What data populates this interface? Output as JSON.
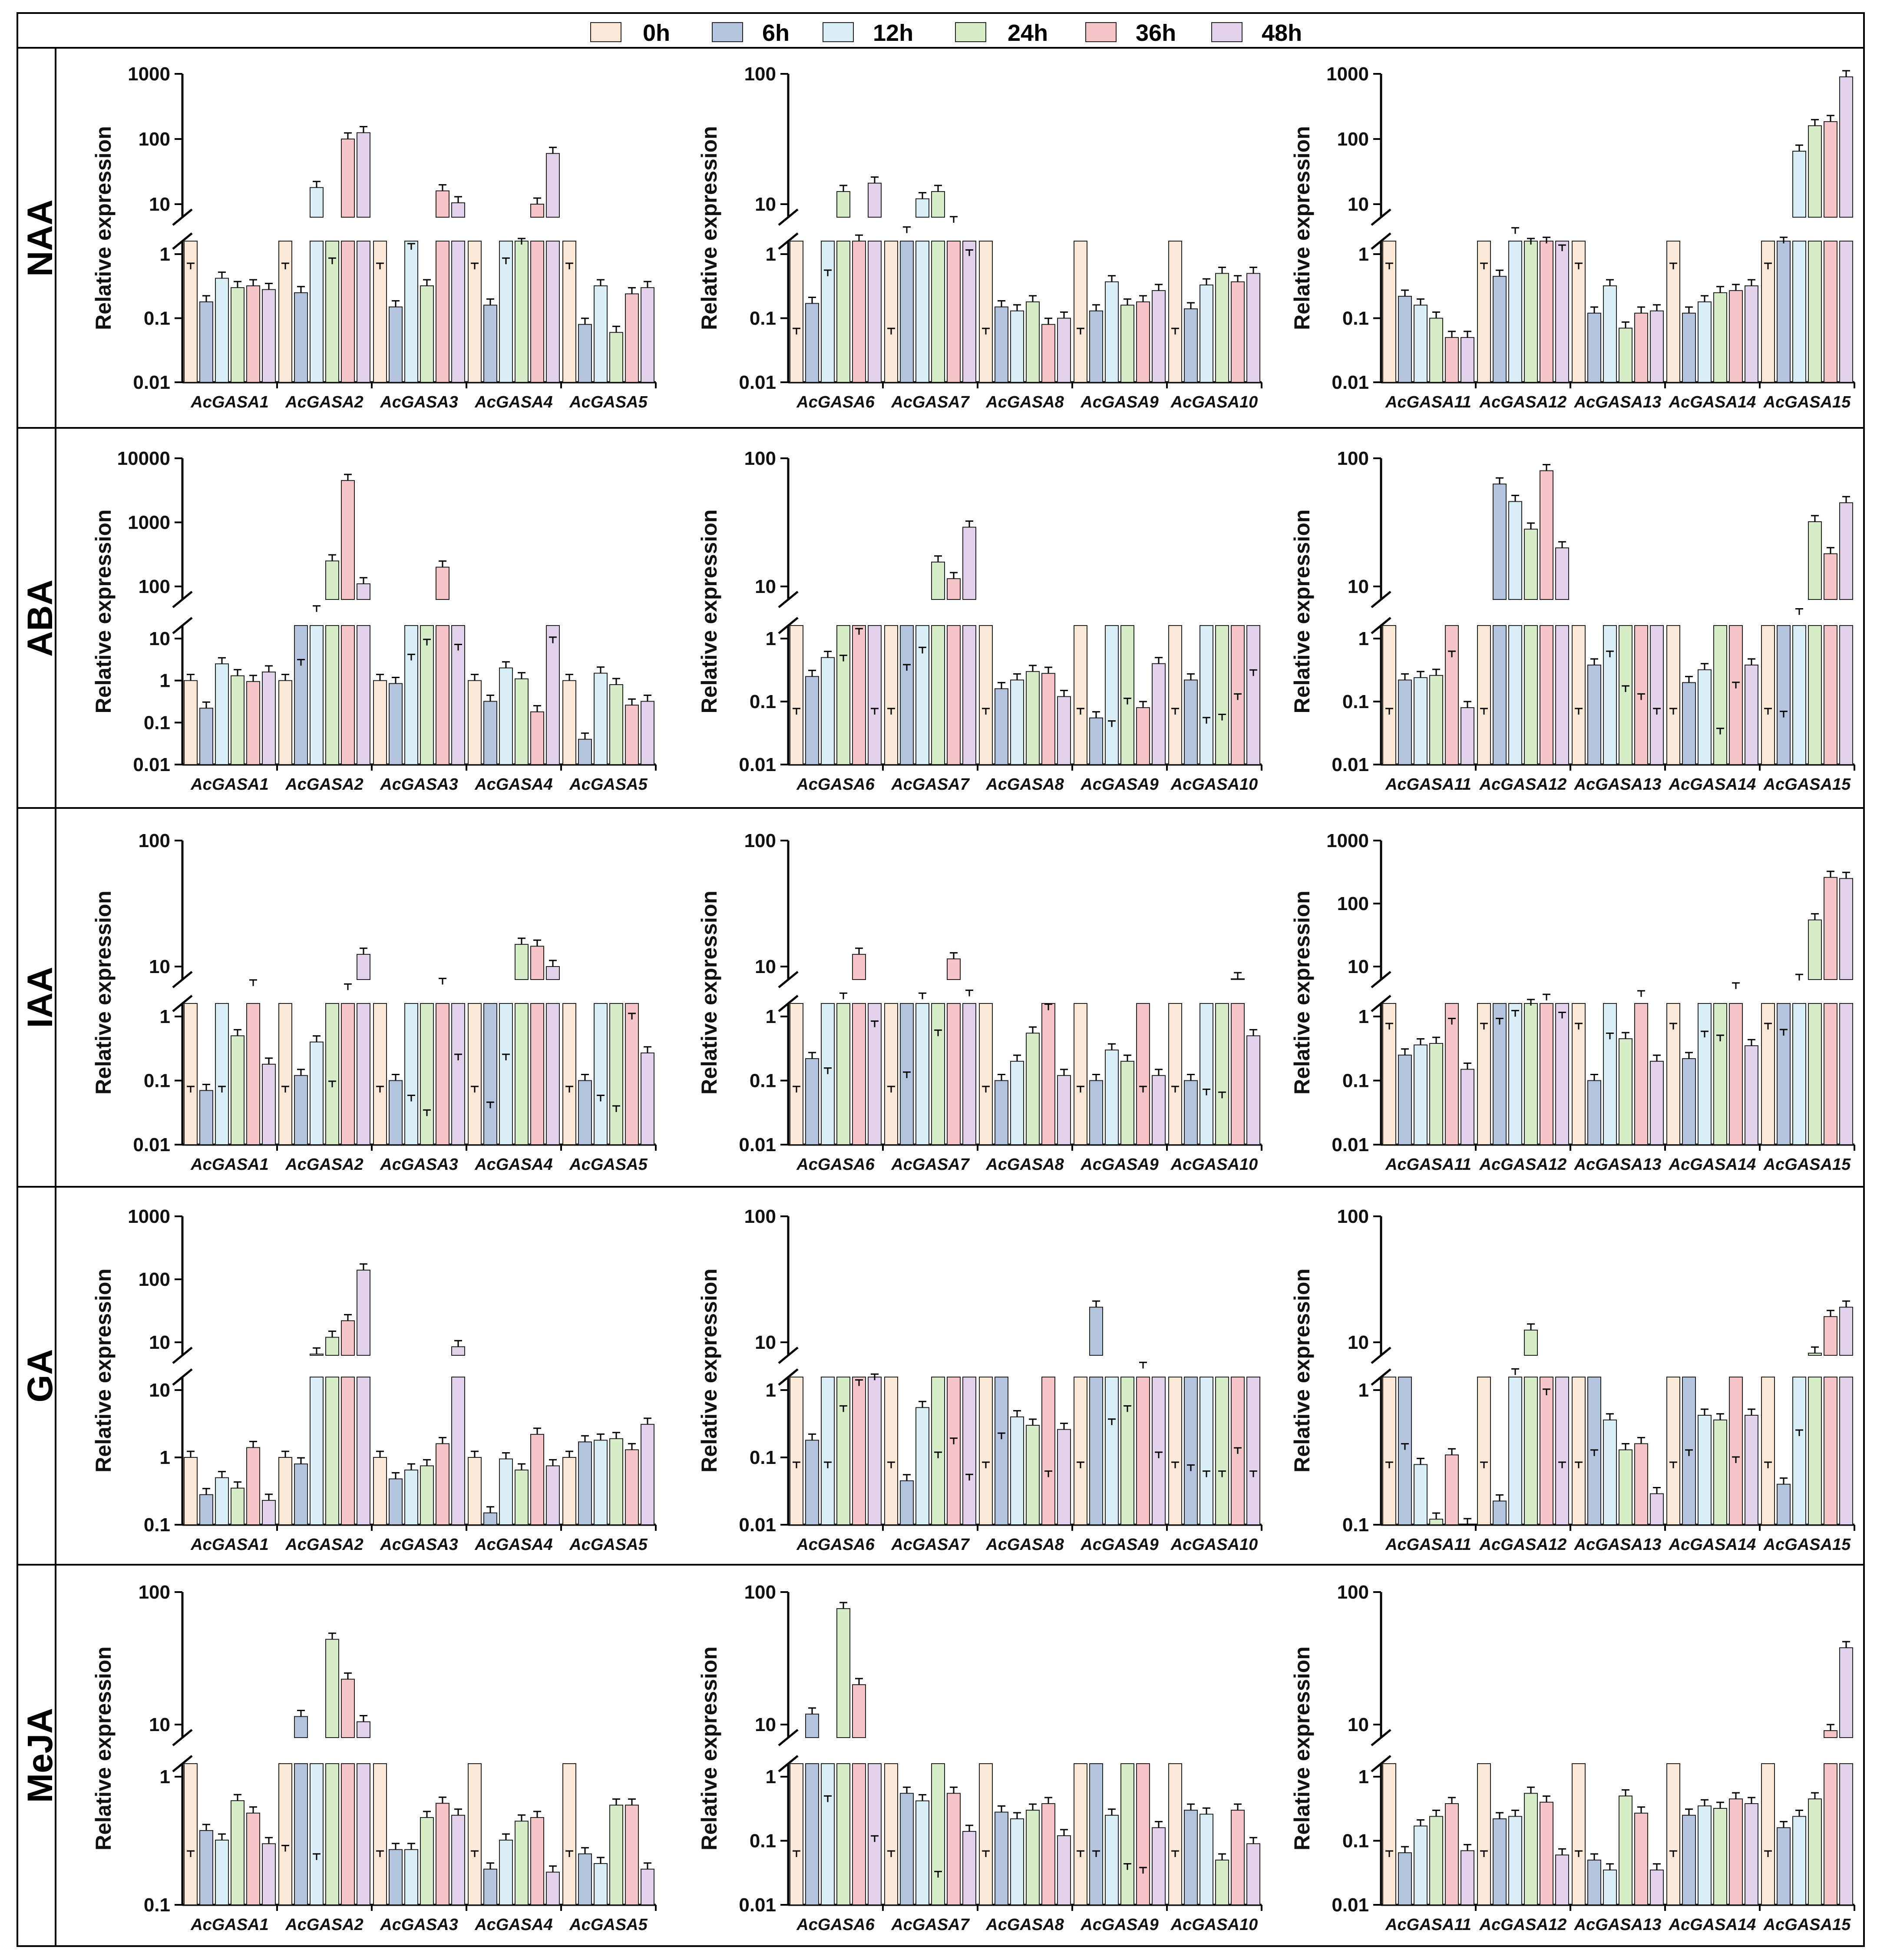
{
  "legend": {
    "labels": [
      "0h",
      "6h",
      "12h",
      "24h",
      "36h",
      "48h"
    ],
    "colors": [
      "#fbe8d6",
      "#b4c4de",
      "#d9eef6",
      "#d7ecc9",
      "#f7c5c7",
      "#e2d2ec"
    ]
  },
  "y_axis_label": "Relative expression",
  "chart_data": [
    {
      "type": "bar",
      "scale": "log-broken",
      "treatment": "NAA",
      "panel": 1,
      "title": "NAA",
      "ylabel": "Relative expression",
      "lower_ticks": [
        "0.01",
        "0.1",
        "1"
      ],
      "upper_ticks": [
        "10",
        "100",
        "1000"
      ],
      "categories": [
        "AcGASA1",
        "AcGASA2",
        "AcGASA3",
        "AcGASA4",
        "AcGASA5"
      ],
      "values": [
        [
          1.0,
          0.18,
          0.42,
          0.3,
          0.32,
          0.28
        ],
        [
          1.0,
          0.25,
          18,
          1.2,
          100,
          125
        ],
        [
          1.0,
          0.15,
          2.0,
          0.32,
          16,
          10.5
        ],
        [
          1.0,
          0.16,
          1.2,
          2.4,
          10,
          60
        ],
        [
          1.0,
          0.08,
          0.32,
          0.06,
          0.24,
          0.3
        ]
      ]
    },
    {
      "type": "bar",
      "scale": "log-broken",
      "treatment": "NAA",
      "panel": 2,
      "title": "",
      "ylabel": "Relative expression",
      "lower_ticks": [
        "0.01",
        "0.1",
        "1"
      ],
      "upper_ticks": [
        "10",
        "100"
      ],
      "categories": [
        "AcGASA6",
        "AcGASA7",
        "AcGASA8",
        "AcGASA9",
        "AcGASA10"
      ],
      "values": [
        [
          1.0,
          0.17,
          2.8,
          12.5,
          5.2,
          14.5
        ],
        [
          1.0,
          6.0,
          11,
          12.5,
          7.2,
          4.0
        ],
        [
          1.0,
          0.15,
          0.13,
          0.18,
          0.08,
          0.1
        ],
        [
          1.0,
          0.13,
          0.37,
          0.16,
          0.18,
          0.27
        ],
        [
          1.0,
          0.14,
          0.33,
          0.5,
          0.37,
          0.5
        ]
      ]
    },
    {
      "type": "bar",
      "scale": "log-broken",
      "treatment": "NAA",
      "panel": 3,
      "title": "",
      "ylabel": "Relative expression",
      "lower_ticks": [
        "0.01",
        "0.1",
        "1"
      ],
      "upper_ticks": [
        "10",
        "100",
        "1000"
      ],
      "categories": [
        "AcGASA11",
        "AcGASA12",
        "AcGASA13",
        "AcGASA14",
        "AcGASA15"
      ],
      "values": [
        [
          1.0,
          0.22,
          0.16,
          0.1,
          0.05,
          0.05
        ],
        [
          1.0,
          0.45,
          3.5,
          2.4,
          2.5,
          1.9
        ],
        [
          1.0,
          0.12,
          0.32,
          0.07,
          0.12,
          0.13
        ],
        [
          1.0,
          0.12,
          0.18,
          0.25,
          0.27,
          0.32
        ],
        [
          1.0,
          2.5,
          65,
          160,
          185,
          900
        ]
      ]
    },
    {
      "type": "bar",
      "scale": "log-broken",
      "treatment": "ABA",
      "panel": 1,
      "title": "ABA",
      "ylabel": "Relative expression",
      "lower_ticks": [
        "0.01",
        "0.1",
        "1",
        "10"
      ],
      "upper_ticks": [
        "100",
        "1000",
        "10000"
      ],
      "categories": [
        "AcGASA1",
        "AcGASA2",
        "AcGASA3",
        "AcGASA4",
        "AcGASA5"
      ],
      "values": [
        [
          1.0,
          0.22,
          2.5,
          1.3,
          0.95,
          1.6
        ],
        [
          1.0,
          5.8,
          40,
          250,
          4500,
          110
        ],
        [
          1.0,
          0.85,
          7,
          12,
          200,
          10
        ],
        [
          1.0,
          0.32,
          2.0,
          1.1,
          0.18,
          13
        ],
        [
          1.0,
          0.04,
          1.5,
          0.8,
          0.26,
          0.32
        ]
      ]
    },
    {
      "type": "bar",
      "scale": "log-broken",
      "treatment": "ABA",
      "panel": 2,
      "title": "",
      "ylabel": "Relative expression",
      "lower_ticks": [
        "0.01",
        "0.1",
        "1"
      ],
      "upper_ticks": [
        "10",
        "100"
      ],
      "categories": [
        "AcGASA6",
        "AcGASA7",
        "AcGASA8",
        "AcGASA9",
        "AcGASA10"
      ],
      "values": [
        [
          1.0,
          0.25,
          0.5,
          2.6,
          4.2,
          1.0
        ],
        [
          1.0,
          2.2,
          3.0,
          15.5,
          11.5,
          29
        ],
        [
          1.0,
          0.16,
          0.22,
          0.3,
          0.28,
          0.12
        ],
        [
          1.0,
          0.055,
          0.8,
          1.2,
          0.08,
          0.4
        ],
        [
          1.0,
          0.22,
          0.85,
          0.9,
          1.3,
          2.0
        ]
      ]
    },
    {
      "type": "bar",
      "scale": "log-broken",
      "treatment": "ABA",
      "panel": 3,
      "title": "",
      "ylabel": "Relative expression",
      "lower_ticks": [
        "0.01",
        "0.1",
        "1"
      ],
      "upper_ticks": [
        "10",
        "100"
      ],
      "categories": [
        "AcGASA11",
        "AcGASA12",
        "AcGASA13",
        "AcGASA14",
        "AcGASA15"
      ],
      "values": [
        [
          1.0,
          0.22,
          0.24,
          0.26,
          2.8,
          0.08
        ],
        [
          1.0,
          63,
          46,
          28,
          80,
          20
        ],
        [
          1.0,
          0.38,
          2.8,
          1.5,
          1.3,
          1.0
        ],
        [
          1.0,
          0.2,
          0.32,
          0.7,
          1.6,
          0.38
        ],
        [
          1.0,
          0.95,
          6.0,
          32,
          18,
          45
        ]
      ]
    },
    {
      "type": "bar",
      "scale": "log-broken",
      "treatment": "IAA",
      "panel": 1,
      "title": "IAA",
      "ylabel": "Relative expression",
      "lower_ticks": [
        "0.01",
        "0.1",
        "1"
      ],
      "upper_ticks": [
        "10",
        "100"
      ],
      "categories": [
        "AcGASA1",
        "AcGASA2",
        "AcGASA3",
        "AcGASA4",
        "AcGASA5"
      ],
      "values": [
        [
          1.0,
          0.07,
          1.0,
          0.5,
          7.0,
          0.18
        ],
        [
          1.0,
          0.12,
          0.4,
          1.1,
          6.5,
          12.5
        ],
        [
          1.0,
          0.1,
          0.85,
          0.65,
          7.2,
          1.8
        ],
        [
          1.0,
          0.75,
          1.8,
          15,
          14.5,
          10
        ],
        [
          1.0,
          0.1,
          0.85,
          0.7,
          3.8,
          0.27
        ]
      ]
    },
    {
      "type": "bar",
      "scale": "log-broken",
      "treatment": "IAA",
      "panel": 2,
      "title": "",
      "ylabel": "Relative expression",
      "lower_ticks": [
        "0.01",
        "0.1",
        "1"
      ],
      "upper_ticks": [
        "10",
        "100"
      ],
      "categories": [
        "AcGASA6",
        "AcGASA7",
        "AcGASA8",
        "AcGASA9",
        "AcGASA10"
      ],
      "values": [
        [
          1.0,
          0.22,
          1.4,
          5.5,
          12.5,
          3.3
        ],
        [
          1.0,
          1.3,
          5.5,
          2.8,
          11.5,
          5.8
        ],
        [
          1.0,
          0.1,
          0.2,
          0.55,
          4.5,
          0.12
        ],
        [
          1.0,
          0.1,
          0.3,
          0.2,
          1.0,
          0.12
        ],
        [
          1.0,
          0.1,
          0.95,
          0.9,
          8.0,
          0.5
        ]
      ]
    },
    {
      "type": "bar",
      "scale": "log-broken",
      "treatment": "IAA",
      "panel": 3,
      "title": "",
      "ylabel": "Relative expression",
      "lower_ticks": [
        "0.01",
        "0.1",
        "1"
      ],
      "upper_ticks": [
        "10",
        "100",
        "1000"
      ],
      "categories": [
        "AcGASA11",
        "AcGASA12",
        "AcGASA13",
        "AcGASA14",
        "AcGASA15"
      ],
      "values": [
        [
          1.0,
          0.25,
          0.36,
          0.38,
          1.2,
          0.15
        ],
        [
          1.0,
          1.2,
          1.6,
          2.4,
          2.9,
          1.5
        ],
        [
          1.0,
          0.1,
          0.7,
          0.45,
          3.3,
          0.2
        ],
        [
          1.0,
          0.22,
          0.75,
          0.65,
          4.4,
          0.35
        ],
        [
          1.0,
          0.8,
          6.0,
          55,
          260,
          250
        ]
      ]
    },
    {
      "type": "bar",
      "scale": "log-broken",
      "treatment": "GA",
      "panel": 1,
      "title": "GA",
      "ylabel": "Relative expression",
      "lower_ticks": [
        "0.1",
        "1",
        "10"
      ],
      "upper_ticks": [
        "10",
        "100",
        "1000"
      ],
      "categories": [
        "AcGASA1",
        "AcGASA2",
        "AcGASA3",
        "AcGASA4",
        "AcGASA5"
      ],
      "values": [
        [
          1.0,
          0.28,
          0.5,
          0.35,
          1.4,
          0.23
        ],
        [
          1.0,
          0.8,
          6.5,
          12,
          22,
          140
        ],
        [
          1.0,
          0.48,
          0.65,
          0.75,
          1.6,
          8.5
        ],
        [
          1.0,
          0.15,
          0.95,
          0.65,
          2.2,
          0.75
        ],
        [
          1.0,
          1.7,
          1.8,
          1.9,
          1.3,
          3.1
        ]
      ]
    },
    {
      "type": "bar",
      "scale": "log-broken",
      "treatment": "GA",
      "panel": 2,
      "title": "",
      "ylabel": "Relative expression",
      "lower_ticks": [
        "0.01",
        "0.1",
        "1"
      ],
      "upper_ticks": [
        "10",
        "100"
      ],
      "categories": [
        "AcGASA6",
        "AcGASA7",
        "AcGASA8",
        "AcGASA9",
        "AcGASA10"
      ],
      "values": [
        [
          1.0,
          0.18,
          1.0,
          2.8,
          4.5,
          5.0
        ],
        [
          1.0,
          0.045,
          0.55,
          1.2,
          1.55,
          0.8
        ],
        [
          1.0,
          1.7,
          0.4,
          0.3,
          0.85,
          0.26
        ],
        [
          1.0,
          19,
          2.2,
          2.8,
          6.2,
          1.2
        ],
        [
          1.0,
          0.95,
          0.85,
          0.85,
          1.3,
          0.85
        ]
      ]
    },
    {
      "type": "bar",
      "scale": "log-broken",
      "treatment": "GA",
      "panel": 3,
      "title": "",
      "ylabel": "Relative expression",
      "lower_ticks": [
        "0.1",
        "1"
      ],
      "upper_ticks": [
        "10",
        "100"
      ],
      "categories": [
        "AcGASA11",
        "AcGASA12",
        "AcGASA13",
        "AcGASA14",
        "AcGASA15"
      ],
      "values": [
        [
          1.0,
          1.4,
          0.28,
          0.11,
          0.33,
          0.1
        ],
        [
          1.0,
          0.15,
          5.5,
          12.5,
          3.8,
          1.0
        ],
        [
          1.0,
          1.25,
          0.6,
          0.36,
          0.4,
          0.17
        ],
        [
          1.0,
          1.25,
          0.65,
          0.6,
          1.1,
          0.65
        ],
        [
          1.0,
          0.2,
          1.8,
          8.2,
          16,
          19
        ]
      ]
    },
    {
      "type": "bar",
      "scale": "log-broken",
      "treatment": "MeJA",
      "panel": 1,
      "title": "MeJA",
      "ylabel": "Relative expression",
      "lower_ticks": [
        "0.1",
        "1"
      ],
      "upper_ticks": [
        "10",
        "100"
      ],
      "categories": [
        "AcGASA1",
        "AcGASA2",
        "AcGASA3",
        "AcGASA4",
        "AcGASA5"
      ],
      "values": [
        [
          1.0,
          0.38,
          0.32,
          0.65,
          0.52,
          0.3
        ],
        [
          1.1,
          11.5,
          0.95,
          44,
          22,
          10.5
        ],
        [
          1.0,
          0.27,
          0.27,
          0.48,
          0.62,
          0.5
        ],
        [
          1.0,
          0.19,
          0.32,
          0.45,
          0.48,
          0.18
        ],
        [
          1.0,
          0.25,
          0.21,
          0.6,
          0.6,
          0.19
        ]
      ]
    },
    {
      "type": "bar",
      "scale": "log-broken",
      "treatment": "MeJA",
      "panel": 2,
      "title": "",
      "ylabel": "Relative expression",
      "lower_ticks": [
        "0.01",
        "0.1",
        "1"
      ],
      "upper_ticks": [
        "10",
        "100"
      ],
      "categories": [
        "AcGASA6",
        "AcGASA7",
        "AcGASA8",
        "AcGASA9",
        "AcGASA10"
      ],
      "values": [
        [
          1.0,
          12,
          2.6,
          75,
          20,
          1.3
        ],
        [
          1.0,
          0.55,
          0.42,
          0.7,
          0.55,
          0.14
        ],
        [
          1.0,
          0.28,
          0.22,
          0.3,
          0.38,
          0.12
        ],
        [
          1.0,
          1.0,
          0.25,
          0.8,
          0.75,
          0.16
        ],
        [
          1.0,
          0.3,
          0.26,
          0.05,
          0.3,
          0.09
        ]
      ]
    },
    {
      "type": "bar",
      "scale": "log-broken",
      "treatment": "MeJA",
      "panel": 3,
      "title": "",
      "ylabel": "Relative expression",
      "lower_ticks": [
        "0.01",
        "0.1",
        "1"
      ],
      "upper_ticks": [
        "10",
        "100"
      ],
      "categories": [
        "AcGASA11",
        "AcGASA12",
        "AcGASA13",
        "AcGASA14",
        "AcGASA15"
      ],
      "values": [
        [
          1.0,
          0.065,
          0.17,
          0.24,
          0.38,
          0.07
        ],
        [
          1.0,
          0.22,
          0.24,
          0.55,
          0.4,
          0.06
        ],
        [
          1.0,
          0.05,
          0.035,
          0.5,
          0.27,
          0.035
        ],
        [
          1.0,
          0.25,
          0.35,
          0.32,
          0.45,
          0.38
        ],
        [
          1.0,
          0.16,
          0.24,
          0.45,
          9.0,
          38
        ]
      ]
    }
  ]
}
